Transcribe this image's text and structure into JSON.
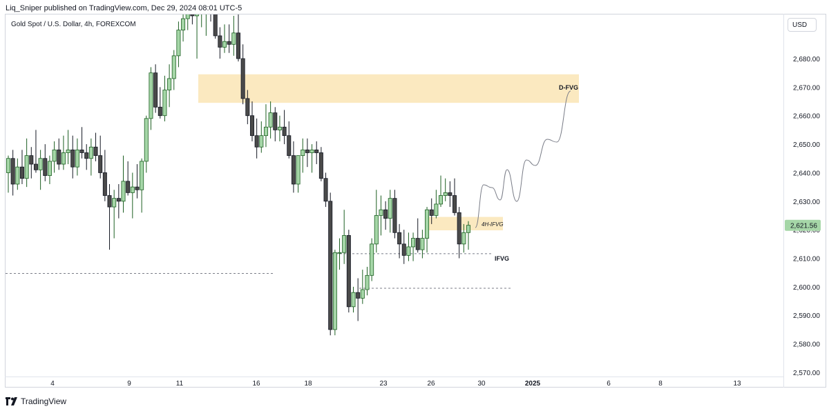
{
  "header": {
    "publish_line": "Liq_Sniper published on TradingView.com, Dec 29, 2024 08:01 UTC-5",
    "symbol": "Gold Spot / U.S. Dollar, 4h, FOREXCOM",
    "currency_button": "USD"
  },
  "footer": {
    "brand": "TradingView"
  },
  "colors": {
    "bull_body": "#a5d6a7",
    "bull_border": "#1b5e20",
    "bear_body": "#4a4a4a",
    "bear_border": "#131722",
    "zone_fill": "#fbe9c0",
    "price_tag": "#a5d6a7",
    "projection": "#787b86"
  },
  "chart_data": {
    "type": "candlestick",
    "ylim": [
      2566,
      2700
    ],
    "y_ticks": [
      "2,680.00",
      "2,670.00",
      "2,660.00",
      "2,650.00",
      "2,640.00",
      "2,630.00",
      "2,620.00",
      "2,610.00",
      "2,600.00",
      "2,590.00",
      "2,580.00",
      "2,570.00"
    ],
    "x_ticks": [
      "4",
      "9",
      "11",
      "16",
      "18",
      "23",
      "26",
      "30",
      "2025",
      "6",
      "8",
      "13"
    ],
    "last_price": "2,621.56",
    "annotations": [
      "D-FVG",
      "4H-IFVG",
      "IFVG"
    ],
    "zones": [
      {
        "label": "D-FVG",
        "high": 2674.5,
        "low": 2664.5
      },
      {
        "label": "4H-IFVG",
        "high": 2624.5,
        "low": 2619.8
      }
    ],
    "levels": [
      {
        "price": 2604.7
      },
      {
        "price": 2611.6
      },
      {
        "price": 2599.5
      }
    ],
    "ohlc": [
      [
        2640,
        2646,
        2633,
        2645
      ],
      [
        2645,
        2648,
        2632,
        2636
      ],
      [
        2636,
        2645,
        2634,
        2642
      ],
      [
        2642,
        2648,
        2636,
        2638
      ],
      [
        2638,
        2652,
        2635,
        2646
      ],
      [
        2646,
        2649,
        2638,
        2643
      ],
      [
        2643,
        2655,
        2640,
        2641
      ],
      [
        2641,
        2648,
        2634,
        2645
      ],
      [
        2645,
        2650,
        2637,
        2639
      ],
      [
        2639,
        2646,
        2636,
        2644
      ],
      [
        2644,
        2651,
        2640,
        2648
      ],
      [
        2648,
        2652,
        2641,
        2643
      ],
      [
        2643,
        2653,
        2641,
        2647
      ],
      [
        2647,
        2655,
        2643,
        2648
      ],
      [
        2648,
        2653,
        2638,
        2642
      ],
      [
        2642,
        2652,
        2639,
        2648
      ],
      [
        2648,
        2656,
        2645,
        2647
      ],
      [
        2647,
        2650,
        2641,
        2645
      ],
      [
        2645,
        2652,
        2639,
        2649
      ],
      [
        2649,
        2654,
        2644,
        2646
      ],
      [
        2646,
        2653,
        2638,
        2640
      ],
      [
        2640,
        2648,
        2630,
        2632
      ],
      [
        2632,
        2636,
        2613,
        2628
      ],
      [
        2628,
        2634,
        2617,
        2631
      ],
      [
        2631,
        2636,
        2624,
        2630
      ],
      [
        2630,
        2646,
        2626,
        2637
      ],
      [
        2637,
        2644,
        2632,
        2633
      ],
      [
        2633,
        2640,
        2624,
        2635
      ],
      [
        2635,
        2643,
        2631,
        2634
      ],
      [
        2634,
        2645,
        2626,
        2644
      ],
      [
        2644,
        2660,
        2640,
        2659
      ],
      [
        2659,
        2677,
        2655,
        2675
      ],
      [
        2675,
        2678,
        2661,
        2663
      ],
      [
        2663,
        2670,
        2659,
        2660
      ],
      [
        2660,
        2674,
        2658,
        2669
      ],
      [
        2669,
        2678,
        2663,
        2673
      ],
      [
        2673,
        2683,
        2669,
        2681
      ],
      [
        2681,
        2693,
        2677,
        2690
      ],
      [
        2690,
        2698,
        2686,
        2694
      ],
      [
        2694,
        2700,
        2690,
        2697
      ],
      [
        2697,
        2700,
        2692,
        2695
      ],
      [
        2695,
        2700,
        2680,
        2696
      ],
      [
        2696,
        2700,
        2691,
        2698
      ],
      [
        2698,
        2700,
        2688,
        2699
      ],
      [
        2699,
        2700,
        2693,
        2697
      ],
      [
        2697,
        2700,
        2687,
        2688
      ],
      [
        2688,
        2691,
        2680,
        2684
      ],
      [
        2684,
        2692,
        2682,
        2686
      ],
      [
        2686,
        2692,
        2682,
        2685
      ],
      [
        2685,
        2695,
        2681,
        2689
      ],
      [
        2689,
        2696,
        2679,
        2680
      ],
      [
        2680,
        2685,
        2664,
        2666
      ],
      [
        2666,
        2669,
        2657,
        2660
      ],
      [
        2660,
        2665,
        2651,
        2653
      ],
      [
        2653,
        2659,
        2645,
        2649
      ],
      [
        2649,
        2658,
        2647,
        2653
      ],
      [
        2653,
        2664,
        2649,
        2656
      ],
      [
        2656,
        2665,
        2652,
        2661
      ],
      [
        2661,
        2663,
        2651,
        2655
      ],
      [
        2655,
        2660,
        2651,
        2656
      ],
      [
        2656,
        2662,
        2650,
        2653
      ],
      [
        2653,
        2658,
        2645,
        2646
      ],
      [
        2646,
        2651,
        2633,
        2636
      ],
      [
        2636,
        2645,
        2633,
        2646
      ],
      [
        2646,
        2652,
        2640,
        2648
      ],
      [
        2648,
        2652,
        2642,
        2647
      ],
      [
        2647,
        2650,
        2640,
        2648
      ],
      [
        2648,
        2651,
        2643,
        2647
      ],
      [
        2647,
        2649,
        2637,
        2638
      ],
      [
        2638,
        2640,
        2628,
        2630
      ],
      [
        2630,
        2633,
        2583,
        2585
      ],
      [
        2585,
        2613,
        2583,
        2612
      ],
      [
        2612,
        2617,
        2606,
        2612
      ],
      [
        2612,
        2627,
        2608,
        2618
      ],
      [
        2618,
        2620,
        2591,
        2593
      ],
      [
        2593,
        2600,
        2591,
        2598
      ],
      [
        2598,
        2603,
        2588,
        2596
      ],
      [
        2596,
        2606,
        2594,
        2599
      ],
      [
        2599,
        2607,
        2597,
        2604
      ],
      [
        2604,
        2617,
        2602,
        2615
      ],
      [
        2615,
        2634,
        2612,
        2625
      ],
      [
        2625,
        2632,
        2618,
        2627
      ],
      [
        2627,
        2630,
        2620,
        2624
      ],
      [
        2624,
        2634,
        2619,
        2631
      ],
      [
        2631,
        2634,
        2617,
        2619
      ],
      [
        2619,
        2622,
        2610,
        2615
      ],
      [
        2615,
        2620,
        2608,
        2611
      ],
      [
        2611,
        2619,
        2609,
        2614
      ],
      [
        2614,
        2619,
        2609,
        2617
      ],
      [
        2617,
        2624,
        2612,
        2613
      ],
      [
        2613,
        2620,
        2610,
        2617
      ],
      [
        2617,
        2628,
        2612,
        2627
      ],
      [
        2627,
        2631,
        2622,
        2625
      ],
      [
        2625,
        2634,
        2624,
        2629
      ],
      [
        2629,
        2639,
        2628,
        2632
      ],
      [
        2632,
        2638,
        2630,
        2633
      ],
      [
        2633,
        2637,
        2628,
        2632
      ],
      [
        2632,
        2638,
        2625,
        2626
      ],
      [
        2626,
        2628,
        2610,
        2615
      ],
      [
        2615,
        2622,
        2612,
        2619
      ],
      [
        2619,
        2623,
        2613,
        2621.56
      ]
    ],
    "projection": [
      [
        2621,
        2630
      ],
      [
        2637,
        2639
      ],
      [
        2628,
        2640
      ],
      [
        2644,
        2650
      ],
      [
        2652,
        2668
      ]
    ]
  }
}
